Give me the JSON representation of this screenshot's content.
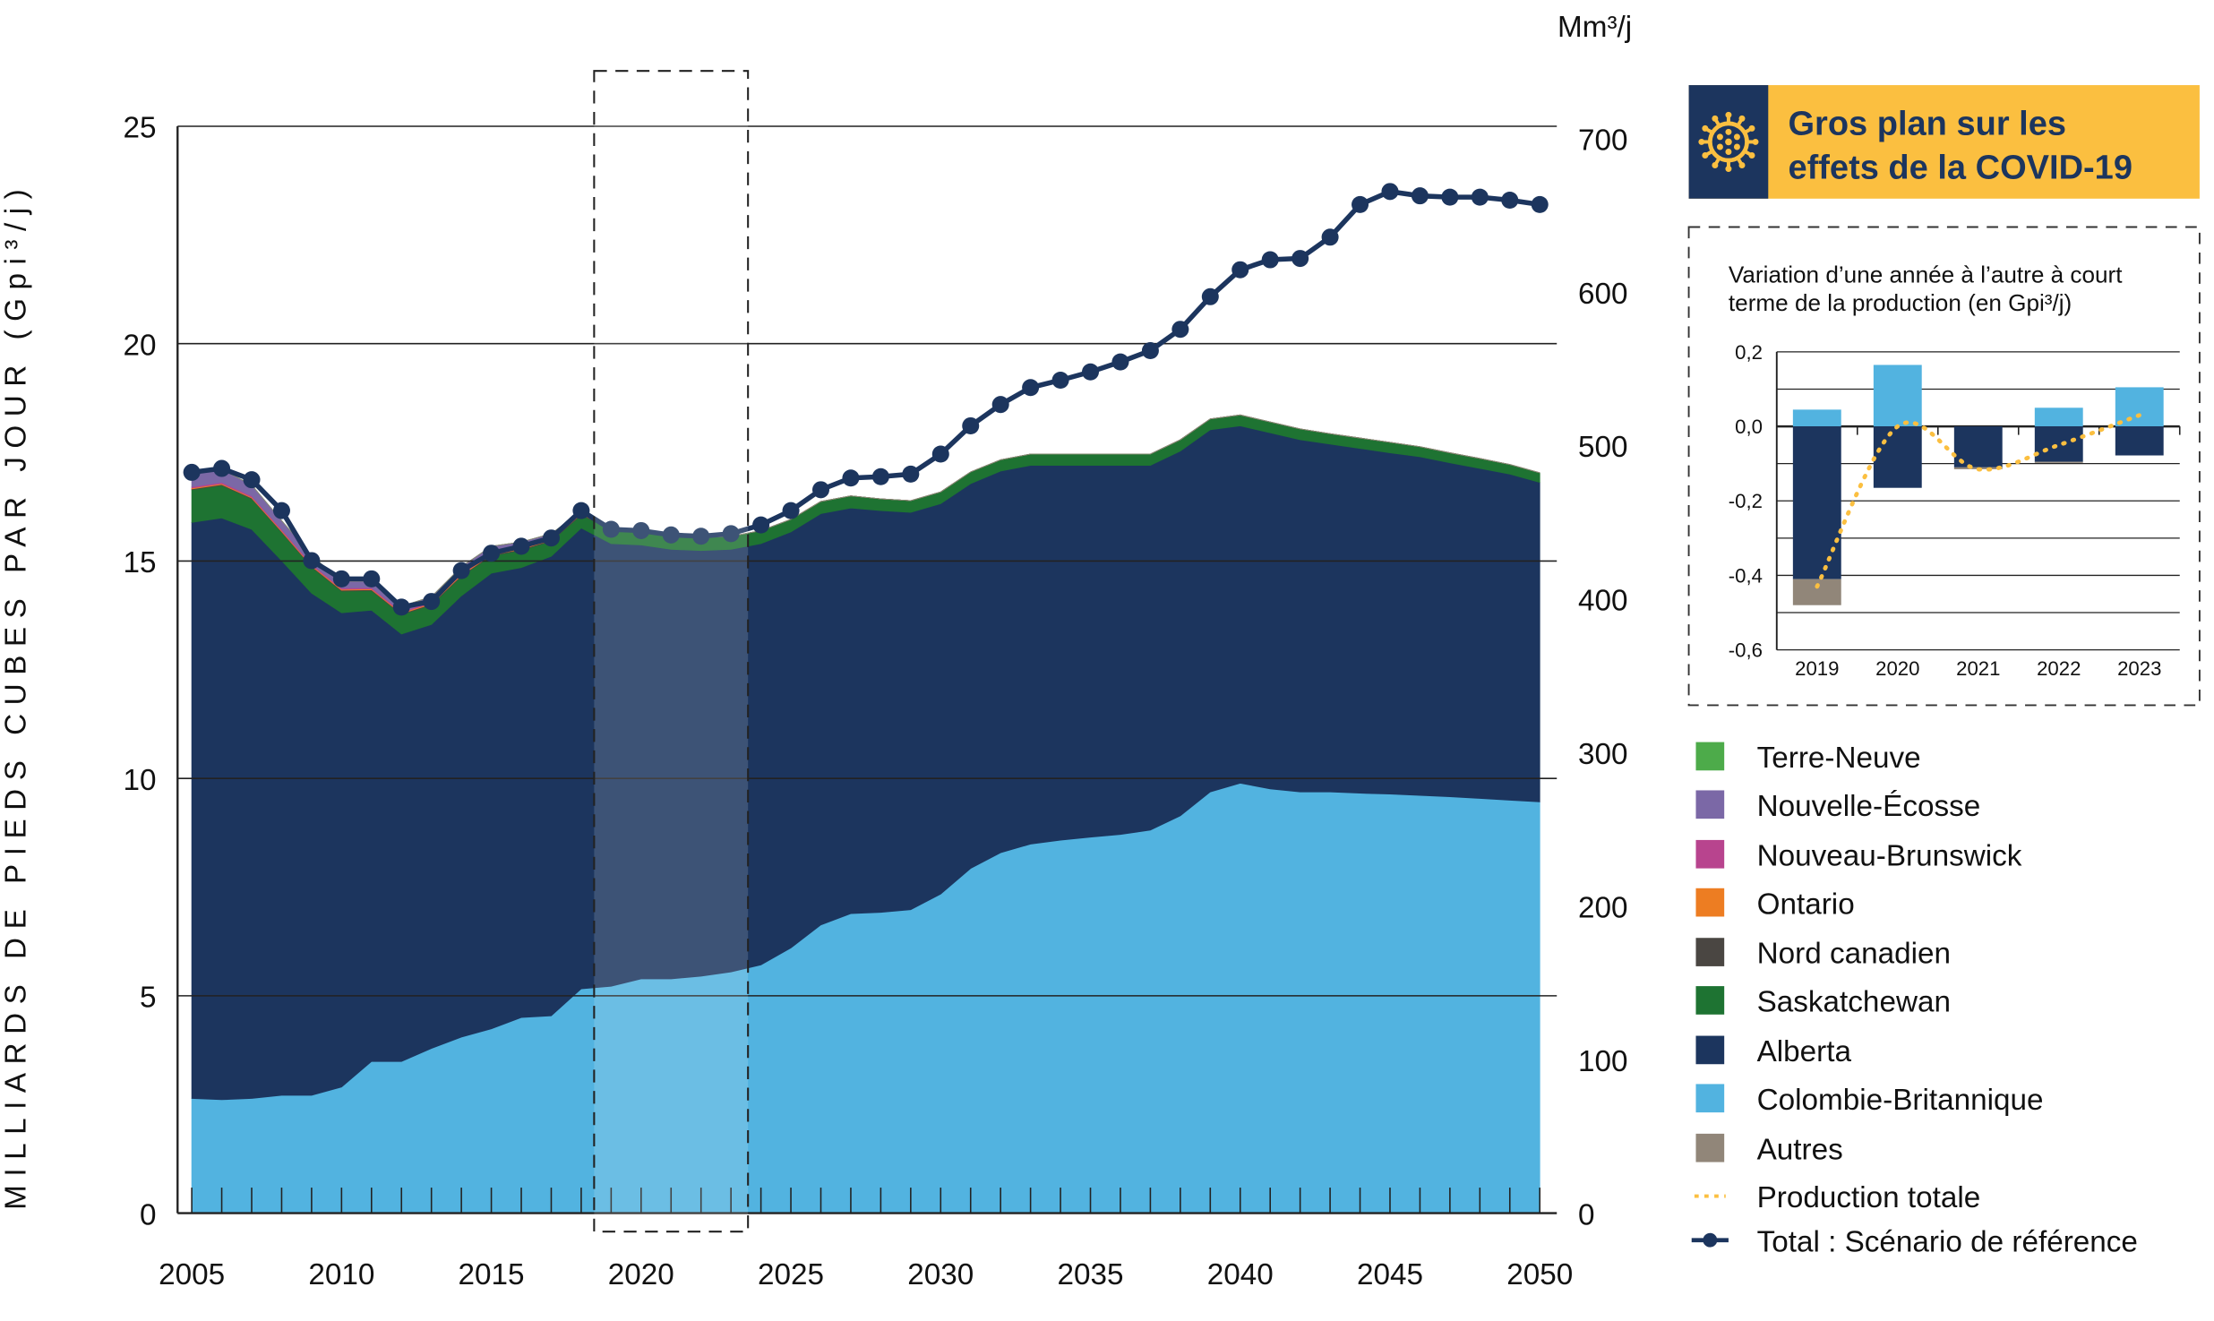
{
  "chart_data": [
    {
      "type": "area",
      "stacked": true,
      "ylabel": "MILLIARDS DE PIEDS CUBES PAR JOUR (Gpi³/j)",
      "y2label": "Mm³/j",
      "ylim": [
        0,
        25
      ],
      "y2lim": [
        0,
        708
      ],
      "yticks": [
        "0",
        "5",
        "10",
        "15",
        "20",
        "25"
      ],
      "y2ticks": [
        "0",
        "100",
        "200",
        "300",
        "400",
        "500",
        "600",
        "700"
      ],
      "xticks": [
        "2005",
        "2010",
        "2015",
        "2020",
        "2025",
        "2030",
        "2035",
        "2040",
        "2045",
        "2050"
      ],
      "xlim": [
        2005,
        2050
      ],
      "grid": "horizontal",
      "highlight_years": [
        2019,
        2023
      ],
      "x": [
        2005,
        2006,
        2007,
        2008,
        2009,
        2010,
        2011,
        2012,
        2013,
        2014,
        2015,
        2016,
        2017,
        2018,
        2019,
        2020,
        2021,
        2022,
        2023,
        2024,
        2025,
        2026,
        2027,
        2028,
        2029,
        2030,
        2031,
        2032,
        2033,
        2034,
        2035,
        2036,
        2037,
        2038,
        2039,
        2040,
        2041,
        2042,
        2043,
        2044,
        2045,
        2046,
        2047,
        2048,
        2049,
        2050
      ],
      "series": [
        {
          "name": "Colombie-Britannique",
          "color": "#52b3e0",
          "values": [
            2.64,
            2.61,
            2.64,
            2.71,
            2.71,
            2.9,
            3.49,
            3.49,
            3.79,
            4.05,
            4.24,
            4.5,
            4.54,
            5.16,
            5.22,
            5.39,
            5.39,
            5.45,
            5.55,
            5.71,
            6.1,
            6.63,
            6.89,
            6.92,
            6.98,
            7.34,
            7.93,
            8.29,
            8.49,
            8.58,
            8.65,
            8.71,
            8.81,
            9.14,
            9.69,
            9.89,
            9.76,
            9.69,
            9.69,
            9.66,
            9.64,
            9.61,
            9.58,
            9.54,
            9.5,
            9.46
          ]
        },
        {
          "name": "Alberta",
          "color": "#1c355e",
          "values": [
            13.25,
            13.38,
            13.09,
            12.3,
            11.55,
            10.91,
            10.38,
            9.83,
            9.75,
            10.15,
            10.48,
            10.35,
            10.57,
            10.6,
            10.18,
            9.98,
            9.88,
            9.79,
            9.72,
            9.69,
            9.57,
            9.46,
            9.33,
            9.24,
            9.14,
            8.98,
            8.85,
            8.78,
            8.71,
            8.62,
            8.55,
            8.49,
            8.39,
            8.39,
            8.33,
            8.22,
            8.19,
            8.1,
            8.0,
            7.93,
            7.85,
            7.79,
            7.68,
            7.59,
            7.5,
            7.35
          ]
        },
        {
          "name": "Saskatchewan",
          "color": "#1e7332",
          "values": [
            0.75,
            0.75,
            0.7,
            0.65,
            0.6,
            0.5,
            0.45,
            0.45,
            0.45,
            0.45,
            0.4,
            0.4,
            0.35,
            0.3,
            0.33,
            0.32,
            0.31,
            0.3,
            0.3,
            0.3,
            0.29,
            0.28,
            0.28,
            0.27,
            0.27,
            0.27,
            0.27,
            0.26,
            0.26,
            0.26,
            0.26,
            0.26,
            0.26,
            0.26,
            0.25,
            0.25,
            0.25,
            0.25,
            0.24,
            0.24,
            0.24,
            0.23,
            0.23,
            0.23,
            0.22,
            0.22
          ]
        },
        {
          "name": "Nord canadien",
          "color": "#4a4642",
          "values": [
            0.02,
            0.02,
            0.02,
            0.02,
            0.02,
            0.02,
            0.02,
            0.02,
            0.02,
            0.02,
            0.02,
            0.02,
            0.02,
            0.02,
            0,
            0,
            0,
            0,
            0,
            0,
            0,
            0,
            0,
            0,
            0,
            0,
            0,
            0,
            0,
            0,
            0,
            0,
            0,
            0,
            0,
            0,
            0,
            0,
            0,
            0,
            0,
            0,
            0,
            0,
            0,
            0
          ]
        },
        {
          "name": "Ontario",
          "color": "#ed7d22",
          "values": [
            0.02,
            0.02,
            0.02,
            0.02,
            0.02,
            0.02,
            0.02,
            0.02,
            0.02,
            0.02,
            0.02,
            0.02,
            0.02,
            0.02,
            0,
            0,
            0,
            0,
            0,
            0,
            0,
            0,
            0,
            0,
            0,
            0,
            0,
            0,
            0,
            0,
            0,
            0,
            0,
            0,
            0,
            0,
            0,
            0,
            0,
            0,
            0,
            0,
            0,
            0,
            0,
            0
          ]
        },
        {
          "name": "Nouveau-Brunswick",
          "color": "#b8448e",
          "values": [
            0.03,
            0.03,
            0.03,
            0.03,
            0.03,
            0.03,
            0.03,
            0.03,
            0.03,
            0.03,
            0.03,
            0.03,
            0.03,
            0.02,
            0,
            0,
            0,
            0,
            0,
            0,
            0,
            0,
            0,
            0,
            0,
            0,
            0,
            0,
            0,
            0,
            0,
            0,
            0,
            0,
            0,
            0,
            0,
            0,
            0,
            0,
            0,
            0,
            0,
            0,
            0,
            0
          ]
        },
        {
          "name": "Nouvelle-Écosse",
          "color": "#7b68a6",
          "values": [
            0.3,
            0.3,
            0.25,
            0.2,
            0.2,
            0.15,
            0.15,
            0.12,
            0.12,
            0.15,
            0.15,
            0.12,
            0.1,
            0.02,
            0,
            0,
            0,
            0,
            0,
            0,
            0,
            0,
            0,
            0,
            0,
            0,
            0,
            0,
            0,
            0,
            0,
            0,
            0,
            0,
            0,
            0,
            0,
            0,
            0,
            0,
            0,
            0,
            0,
            0,
            0,
            0
          ]
        },
        {
          "name": "Terre-Neuve",
          "color": "#4dab4a",
          "values": [
            0,
            0,
            0,
            0,
            0,
            0,
            0,
            0,
            0,
            0,
            0,
            0,
            0,
            0,
            0,
            0,
            0,
            0,
            0,
            0,
            0,
            0,
            0,
            0,
            0,
            0,
            0,
            0,
            0,
            0,
            0,
            0,
            0,
            0,
            0,
            0,
            0,
            0,
            0,
            0,
            0,
            0,
            0,
            0,
            0,
            0
          ]
        },
        {
          "name": "Autres",
          "color": "#918679",
          "values": [
            0,
            0,
            0,
            0,
            0,
            0,
            0,
            0,
            0,
            0,
            0,
            0,
            0,
            0,
            0,
            0,
            0,
            0,
            0,
            0,
            0,
            0,
            0,
            0,
            0,
            0,
            0,
            0,
            0,
            0,
            0,
            0,
            0,
            0,
            0,
            0,
            0,
            0,
            0,
            0,
            0,
            0,
            0,
            0,
            0,
            0
          ]
        }
      ],
      "line": {
        "name": "Total : Scénario de référence",
        "color": "#1c355e",
        "values": [
          17.04,
          17.13,
          16.87,
          16.16,
          15.01,
          14.59,
          14.59,
          13.94,
          14.07,
          14.78,
          15.18,
          15.34,
          15.53,
          16.16,
          15.73,
          15.7,
          15.6,
          15.57,
          15.63,
          15.83,
          16.16,
          16.64,
          16.91,
          16.94,
          17.0,
          17.46,
          18.11,
          18.6,
          18.99,
          19.16,
          19.35,
          19.58,
          19.84,
          20.33,
          21.08,
          21.7,
          21.93,
          21.96,
          22.45,
          23.2,
          23.5,
          23.4,
          23.37,
          23.37,
          23.3,
          23.2
        ]
      }
    },
    {
      "type": "bar",
      "stacked": true,
      "title": "Variation d’une année à l’autre à court terme de la production (en Gpi³/j)",
      "title_lines": [
        "Variation d’une année à l’autre à court",
        "terme de la production (en Gpi³/j)"
      ],
      "categories": [
        "2019",
        "2020",
        "2021",
        "2022",
        "2023"
      ],
      "ylim": [
        -0.6,
        0.2
      ],
      "yticks": [
        "0,2",
        "0,0",
        "-0,2",
        "-0,4",
        "-0,6"
      ],
      "series": [
        {
          "name": "Colombie-Britannique",
          "color": "#52b3e0",
          "values": [
            0.045,
            0.165,
            0.0,
            0.05,
            0.105
          ]
        },
        {
          "name": "Alberta",
          "color": "#1c355e",
          "values": [
            -0.41,
            -0.165,
            -0.11,
            -0.095,
            -0.078
          ]
        },
        {
          "name": "Autres",
          "color": "#918679",
          "values": [
            -0.07,
            0.0,
            -0.005,
            -0.002,
            0.0
          ]
        }
      ],
      "line": {
        "name": "Production totale",
        "color": "#fbbf40",
        "values": [
          -0.43,
          0.0,
          -0.115,
          -0.05,
          0.03
        ]
      }
    }
  ],
  "covid_panel": {
    "title_lines": [
      "Gros plan sur les",
      "effets de la COVID-19"
    ],
    "icon": "virus-icon",
    "bg_color": "#fbbf40",
    "icon_bg_color": "#1c355e"
  },
  "legend": [
    {
      "label": "Terre-Neuve",
      "color": "#4dab4a",
      "kind": "swatch"
    },
    {
      "label": "Nouvelle-Écosse",
      "color": "#7b68a6",
      "kind": "swatch"
    },
    {
      "label": "Nouveau-Brunswick",
      "color": "#b8448e",
      "kind": "swatch"
    },
    {
      "label": "Ontario",
      "color": "#ed7d22",
      "kind": "swatch"
    },
    {
      "label": "Nord canadien",
      "color": "#4a4642",
      "kind": "swatch"
    },
    {
      "label": "Saskatchewan",
      "color": "#1e7332",
      "kind": "swatch"
    },
    {
      "label": "Alberta",
      "color": "#1c355e",
      "kind": "swatch"
    },
    {
      "label": "Colombie-Britannique",
      "color": "#52b3e0",
      "kind": "swatch"
    },
    {
      "label": "Autres",
      "color": "#918679",
      "kind": "swatch"
    },
    {
      "label": "Production totale",
      "color": "#fbbf40",
      "kind": "dotted-line"
    },
    {
      "label": "Total : Scénario de référence",
      "color": "#1c355e",
      "kind": "line-marker"
    }
  ]
}
